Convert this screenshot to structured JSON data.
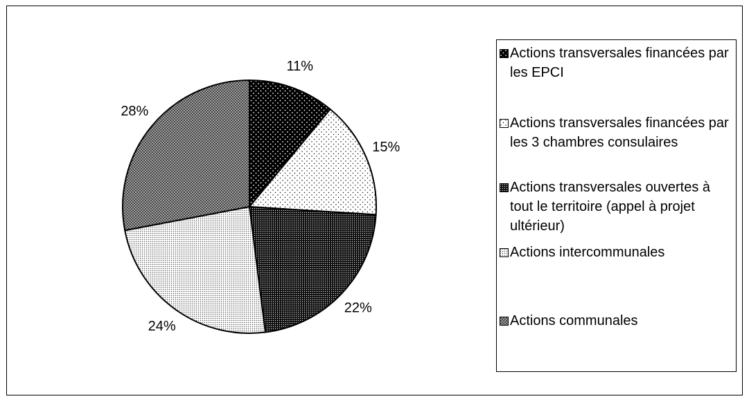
{
  "chart_data": {
    "type": "pie",
    "categories": [
      "Actions transversales financées par les EPCI",
      "Actions transversales financées par les 3 chambres consulaires",
      "Actions transversales ouvertes à tout le territoire (appel à projet ultérieur)",
      "Actions intercommunales",
      "Actions communales"
    ],
    "values": [
      11,
      15,
      22,
      24,
      28
    ],
    "value_labels": [
      "11%",
      "15%",
      "22%",
      "24%",
      "28%"
    ]
  }
}
